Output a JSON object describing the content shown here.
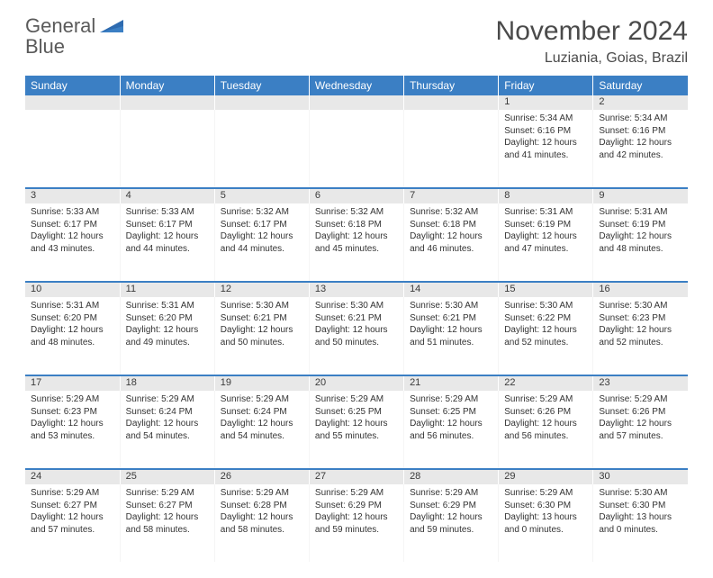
{
  "logo": {
    "word1": "General",
    "word2": "Blue"
  },
  "title": "November 2024",
  "location": "Luziania, Goias, Brazil",
  "colors": {
    "header_bg": "#3b7fc4",
    "header_fg": "#ffffff",
    "daynum_bg": "#e8e8e8",
    "text": "#333333",
    "page_bg": "#ffffff"
  },
  "day_headers": [
    "Sunday",
    "Monday",
    "Tuesday",
    "Wednesday",
    "Thursday",
    "Friday",
    "Saturday"
  ],
  "weeks": [
    [
      {
        "n": "",
        "lines": []
      },
      {
        "n": "",
        "lines": []
      },
      {
        "n": "",
        "lines": []
      },
      {
        "n": "",
        "lines": []
      },
      {
        "n": "",
        "lines": []
      },
      {
        "n": "1",
        "lines": [
          "Sunrise: 5:34 AM",
          "Sunset: 6:16 PM",
          "Daylight: 12 hours and 41 minutes."
        ]
      },
      {
        "n": "2",
        "lines": [
          "Sunrise: 5:34 AM",
          "Sunset: 6:16 PM",
          "Daylight: 12 hours and 42 minutes."
        ]
      }
    ],
    [
      {
        "n": "3",
        "lines": [
          "Sunrise: 5:33 AM",
          "Sunset: 6:17 PM",
          "Daylight: 12 hours and 43 minutes."
        ]
      },
      {
        "n": "4",
        "lines": [
          "Sunrise: 5:33 AM",
          "Sunset: 6:17 PM",
          "Daylight: 12 hours and 44 minutes."
        ]
      },
      {
        "n": "5",
        "lines": [
          "Sunrise: 5:32 AM",
          "Sunset: 6:17 PM",
          "Daylight: 12 hours and 44 minutes."
        ]
      },
      {
        "n": "6",
        "lines": [
          "Sunrise: 5:32 AM",
          "Sunset: 6:18 PM",
          "Daylight: 12 hours and 45 minutes."
        ]
      },
      {
        "n": "7",
        "lines": [
          "Sunrise: 5:32 AM",
          "Sunset: 6:18 PM",
          "Daylight: 12 hours and 46 minutes."
        ]
      },
      {
        "n": "8",
        "lines": [
          "Sunrise: 5:31 AM",
          "Sunset: 6:19 PM",
          "Daylight: 12 hours and 47 minutes."
        ]
      },
      {
        "n": "9",
        "lines": [
          "Sunrise: 5:31 AM",
          "Sunset: 6:19 PM",
          "Daylight: 12 hours and 48 minutes."
        ]
      }
    ],
    [
      {
        "n": "10",
        "lines": [
          "Sunrise: 5:31 AM",
          "Sunset: 6:20 PM",
          "Daylight: 12 hours and 48 minutes."
        ]
      },
      {
        "n": "11",
        "lines": [
          "Sunrise: 5:31 AM",
          "Sunset: 6:20 PM",
          "Daylight: 12 hours and 49 minutes."
        ]
      },
      {
        "n": "12",
        "lines": [
          "Sunrise: 5:30 AM",
          "Sunset: 6:21 PM",
          "Daylight: 12 hours and 50 minutes."
        ]
      },
      {
        "n": "13",
        "lines": [
          "Sunrise: 5:30 AM",
          "Sunset: 6:21 PM",
          "Daylight: 12 hours and 50 minutes."
        ]
      },
      {
        "n": "14",
        "lines": [
          "Sunrise: 5:30 AM",
          "Sunset: 6:21 PM",
          "Daylight: 12 hours and 51 minutes."
        ]
      },
      {
        "n": "15",
        "lines": [
          "Sunrise: 5:30 AM",
          "Sunset: 6:22 PM",
          "Daylight: 12 hours and 52 minutes."
        ]
      },
      {
        "n": "16",
        "lines": [
          "Sunrise: 5:30 AM",
          "Sunset: 6:23 PM",
          "Daylight: 12 hours and 52 minutes."
        ]
      }
    ],
    [
      {
        "n": "17",
        "lines": [
          "Sunrise: 5:29 AM",
          "Sunset: 6:23 PM",
          "Daylight: 12 hours and 53 minutes."
        ]
      },
      {
        "n": "18",
        "lines": [
          "Sunrise: 5:29 AM",
          "Sunset: 6:24 PM",
          "Daylight: 12 hours and 54 minutes."
        ]
      },
      {
        "n": "19",
        "lines": [
          "Sunrise: 5:29 AM",
          "Sunset: 6:24 PM",
          "Daylight: 12 hours and 54 minutes."
        ]
      },
      {
        "n": "20",
        "lines": [
          "Sunrise: 5:29 AM",
          "Sunset: 6:25 PM",
          "Daylight: 12 hours and 55 minutes."
        ]
      },
      {
        "n": "21",
        "lines": [
          "Sunrise: 5:29 AM",
          "Sunset: 6:25 PM",
          "Daylight: 12 hours and 56 minutes."
        ]
      },
      {
        "n": "22",
        "lines": [
          "Sunrise: 5:29 AM",
          "Sunset: 6:26 PM",
          "Daylight: 12 hours and 56 minutes."
        ]
      },
      {
        "n": "23",
        "lines": [
          "Sunrise: 5:29 AM",
          "Sunset: 6:26 PM",
          "Daylight: 12 hours and 57 minutes."
        ]
      }
    ],
    [
      {
        "n": "24",
        "lines": [
          "Sunrise: 5:29 AM",
          "Sunset: 6:27 PM",
          "Daylight: 12 hours and 57 minutes."
        ]
      },
      {
        "n": "25",
        "lines": [
          "Sunrise: 5:29 AM",
          "Sunset: 6:27 PM",
          "Daylight: 12 hours and 58 minutes."
        ]
      },
      {
        "n": "26",
        "lines": [
          "Sunrise: 5:29 AM",
          "Sunset: 6:28 PM",
          "Daylight: 12 hours and 58 minutes."
        ]
      },
      {
        "n": "27",
        "lines": [
          "Sunrise: 5:29 AM",
          "Sunset: 6:29 PM",
          "Daylight: 12 hours and 59 minutes."
        ]
      },
      {
        "n": "28",
        "lines": [
          "Sunrise: 5:29 AM",
          "Sunset: 6:29 PM",
          "Daylight: 12 hours and 59 minutes."
        ]
      },
      {
        "n": "29",
        "lines": [
          "Sunrise: 5:29 AM",
          "Sunset: 6:30 PM",
          "Daylight: 13 hours and 0 minutes."
        ]
      },
      {
        "n": "30",
        "lines": [
          "Sunrise: 5:30 AM",
          "Sunset: 6:30 PM",
          "Daylight: 13 hours and 0 minutes."
        ]
      }
    ]
  ]
}
